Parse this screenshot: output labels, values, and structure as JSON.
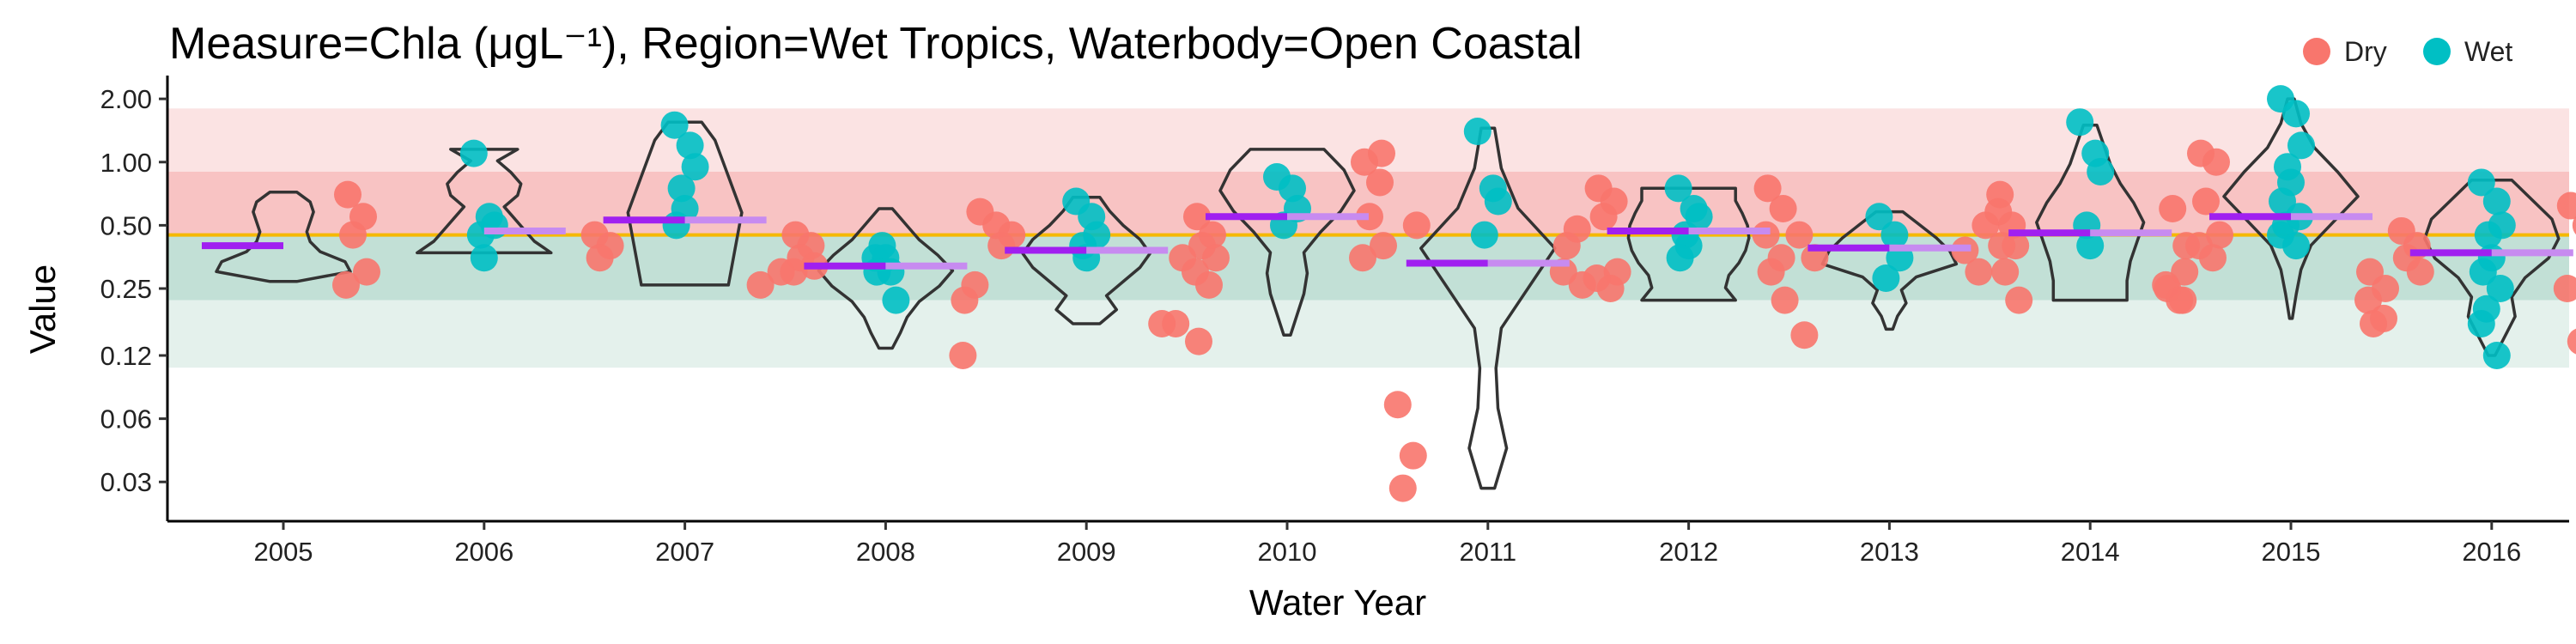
{
  "chart_data": {
    "type": "scatter",
    "title": "Measure=Chla (μgL⁻¹), Region=Wet Tropics, Waterbody=Open Coastal",
    "xlabel": "Water Year",
    "ylabel": "Value",
    "y_scale": "log",
    "ylim": [
      0.0195,
      2.35
    ],
    "y_ticks": [
      0.03,
      0.06,
      0.12,
      0.25,
      0.5,
      1.0,
      2.0
    ],
    "y_tick_labels": [
      "0.03",
      "0.06",
      "0.12",
      "0.25",
      "0.50",
      "1.00",
      "2.00"
    ],
    "categories": [
      "2005",
      "2006",
      "2007",
      "2008",
      "2009",
      "2010",
      "2011",
      "2012",
      "2013",
      "2014",
      "2015",
      "2016"
    ],
    "guideline": 0.45,
    "guideline_color": "#f5b800",
    "bands": [
      {
        "from": 0.9,
        "to": 1.8,
        "color": "#fbe3e3"
      },
      {
        "from": 0.45,
        "to": 0.9,
        "color": "#f8c3c3"
      },
      {
        "from": 0.22,
        "to": 0.45,
        "color": "#c2e0d6"
      },
      {
        "from": 0.105,
        "to": 0.22,
        "color": "#e4f1ec"
      }
    ],
    "legend": {
      "position": "top-right"
    },
    "series": [
      {
        "name": "Dry",
        "color": "#f8766d",
        "values": [
          [
            0.7,
            0.55,
            0.45,
            0.3,
            0.26
          ],
          [],
          [
            0.45,
            0.4,
            0.35,
            0.3,
            0.26
          ],
          [
            0.45,
            0.4,
            0.35,
            0.32,
            0.3,
            0.26,
            0.22,
            0.58,
            0.12
          ],
          [
            0.5,
            0.45,
            0.4,
            0.35,
            0.17,
            0.17
          ],
          [
            0.55,
            0.45,
            0.4,
            0.35,
            0.3,
            0.26,
            0.14,
            1.1,
            1.0,
            0.8,
            0.55,
            0.4,
            0.35
          ],
          [
            0.07,
            0.04,
            0.028,
            0.5,
            0.3,
            0.48,
            0.4,
            0.26
          ],
          [
            0.75,
            0.65,
            0.55,
            0.3,
            0.28,
            0.25,
            0.75,
            0.6,
            0.45,
            0.35,
            0.3,
            0.22
          ],
          [
            0.45,
            0.35,
            0.15,
            0.5,
            0.38,
            0.3
          ],
          [
            0.7,
            0.4,
            0.3,
            0.22,
            0.58,
            0.5,
            0.4,
            0.3,
            0.25,
            0.22,
            0.6,
            0.4,
            0.26,
            0.22
          ],
          [
            1.1,
            1.0,
            0.65,
            0.45,
            0.4,
            0.35,
            0.3,
            0.25,
            0.22,
            0.18,
            0.17
          ],
          [
            0.47,
            0.4,
            0.35,
            0.3,
            0.25,
            0.14,
            0.62,
            0.5
          ]
        ]
      },
      {
        "name": "Wet",
        "color": "#00bfc4",
        "values": [
          [],
          [
            1.1,
            0.55,
            0.5,
            0.45,
            0.35
          ],
          [
            1.5,
            1.2,
            0.95,
            0.75,
            0.6,
            0.5
          ],
          [
            0.35,
            0.3,
            0.22,
            0.4,
            0.35,
            0.3
          ],
          [
            0.65,
            0.55,
            0.45,
            0.4,
            0.35
          ],
          [
            0.85,
            0.75,
            0.6,
            0.5
          ],
          [
            1.4,
            0.75,
            0.65,
            0.45
          ],
          [
            0.75,
            0.6,
            0.55,
            0.45,
            0.4,
            0.35
          ],
          [
            0.55,
            0.45,
            0.35,
            0.28
          ],
          [
            1.55,
            1.1,
            0.9,
            0.5,
            0.4
          ],
          [
            2.0,
            1.7,
            1.2,
            0.95,
            0.8,
            0.65,
            0.55,
            0.5,
            0.45,
            0.4
          ],
          [
            0.8,
            0.65,
            0.5,
            0.45,
            0.35,
            0.3,
            0.25,
            0.2,
            0.17,
            0.12
          ]
        ]
      }
    ],
    "medians": [
      {
        "dry": 0.4,
        "wet": null
      },
      {
        "dry": null,
        "wet": 0.47
      },
      {
        "dry": 0.53,
        "wet": 0.53
      },
      {
        "dry": 0.32,
        "wet": 0.32
      },
      {
        "dry": 0.38,
        "wet": 0.38
      },
      {
        "dry": 0.55,
        "wet": 0.55
      },
      {
        "dry": 0.33,
        "wet": 0.33
      },
      {
        "dry": 0.47,
        "wet": 0.47
      },
      {
        "dry": 0.39,
        "wet": 0.39
      },
      {
        "dry": 0.46,
        "wet": 0.46
      },
      {
        "dry": 0.55,
        "wet": 0.55
      },
      {
        "dry": 0.37,
        "wet": 0.37
      }
    ],
    "violins": [
      {
        "min": 0.27,
        "max": 0.72,
        "profile": [
          0.2,
          1.0,
          0.92,
          0.55,
          0.4,
          0.35,
          0.4,
          0.45,
          0.4,
          0.2
        ]
      },
      {
        "min": 0.37,
        "max": 1.15,
        "profile": [
          1.0,
          0.75,
          0.6,
          0.45,
          0.3,
          0.5,
          0.55,
          0.4,
          0.2,
          0.5
        ]
      },
      {
        "min": 0.26,
        "max": 1.55,
        "profile": [
          0.65,
          0.7,
          0.75,
          0.8,
          0.85,
          0.75,
          0.65,
          0.55,
          0.45,
          0.25
        ]
      },
      {
        "min": 0.13,
        "max": 0.6,
        "profile": [
          0.1,
          0.22,
          0.32,
          0.5,
          0.8,
          1.0,
          0.78,
          0.5,
          0.3,
          0.1
        ]
      },
      {
        "min": 0.17,
        "max": 0.68,
        "profile": [
          0.2,
          0.45,
          0.3,
          0.55,
          0.8,
          0.95,
          0.8,
          0.55,
          0.35,
          0.2
        ]
      },
      {
        "min": 0.15,
        "max": 1.15,
        "profile": [
          0.05,
          0.15,
          0.25,
          0.3,
          0.25,
          0.5,
          0.8,
          1.0,
          0.85,
          0.55
        ]
      },
      {
        "min": 0.028,
        "max": 1.45,
        "profile": [
          0.1,
          0.28,
          0.15,
          0.12,
          0.2,
          0.6,
          1.0,
          0.45,
          0.2,
          0.1
        ]
      },
      {
        "min": 0.22,
        "max": 0.75,
        "profile": [
          0.7,
          0.55,
          0.6,
          0.75,
          0.85,
          0.9,
          0.88,
          0.8,
          0.7,
          0.7
        ]
      },
      {
        "min": 0.16,
        "max": 0.58,
        "profile": [
          0.05,
          0.12,
          0.25,
          0.18,
          0.4,
          1.0,
          0.9,
          0.7,
          0.45,
          0.2
        ]
      },
      {
        "min": 0.22,
        "max": 1.5,
        "profile": [
          0.55,
          0.55,
          0.6,
          0.7,
          0.8,
          0.65,
          0.45,
          0.3,
          0.2,
          0.1
        ]
      },
      {
        "min": 0.18,
        "max": 2.0,
        "profile": [
          0.02,
          0.08,
          0.15,
          0.3,
          0.65,
          1.0,
          0.7,
          0.35,
          0.15,
          0.05
        ]
      },
      {
        "min": 0.12,
        "max": 0.82,
        "profile": [
          0.05,
          0.2,
          0.35,
          0.3,
          0.5,
          0.85,
          1.0,
          0.9,
          0.6,
          0.3
        ]
      }
    ]
  }
}
